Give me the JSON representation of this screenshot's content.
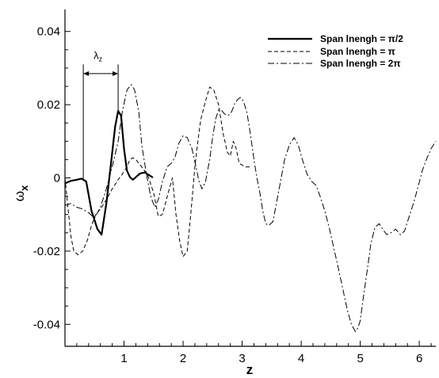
{
  "chart_data": {
    "type": "line",
    "xlabel": "z",
    "ylabel_main": "ω",
    "ylabel_sub": "x",
    "xlim": [
      0,
      6.28
    ],
    "ylim": [
      -0.046,
      0.046
    ],
    "xticks": [
      1,
      2,
      3,
      4,
      5,
      6
    ],
    "yticks": [
      0.04,
      0.02,
      0,
      -0.02,
      -0.04
    ],
    "ytick_labels": [
      "0.04",
      "0.02",
      "0",
      "-0.02",
      "-0.04"
    ],
    "grid": false,
    "legend_position": "top-right",
    "annotation": {
      "main": "λ",
      "sub": "z",
      "x_from": 0.31,
      "x_to": 0.9
    },
    "series": [
      {
        "name": "Span lnengh = π/2",
        "style": "solid",
        "color": "#000000",
        "x": [
          0,
          0.1,
          0.2,
          0.28,
          0.36,
          0.45,
          0.55,
          0.62,
          0.7,
          0.78,
          0.85,
          0.9,
          0.95,
          1.0,
          1.05,
          1.1,
          1.15,
          1.2,
          1.27,
          1.35,
          1.42,
          1.49
        ],
        "y": [
          -0.0015,
          -0.0008,
          -0.0005,
          -0.0002,
          -0.001,
          -0.009,
          -0.014,
          -0.0155,
          -0.007,
          0.004,
          0.014,
          0.0183,
          0.017,
          0.008,
          0.002,
          0.0002,
          -0.0005,
          0.0002,
          0.0012,
          0.0015,
          0.0008,
          0.0001
        ]
      },
      {
        "name": "Span lnengh = π",
        "style": "dashed",
        "color": "#000000",
        "x": [
          0,
          0.05,
          0.1,
          0.15,
          0.22,
          0.3,
          0.38,
          0.45,
          0.52,
          0.6,
          0.7,
          0.8,
          0.9,
          0.97,
          1.05,
          1.1,
          1.15,
          1.2,
          1.3,
          1.4,
          1.5,
          1.58,
          1.65,
          1.75,
          1.82,
          1.88,
          1.94,
          2.0,
          2.07,
          2.13,
          2.2,
          2.25,
          2.3,
          2.38,
          2.45,
          2.52,
          2.6,
          2.68,
          2.75,
          2.8,
          2.85,
          2.9,
          2.95,
          3.0,
          3.06,
          3.14
        ],
        "y": [
          0.0,
          -0.008,
          -0.016,
          -0.02,
          -0.021,
          -0.02,
          -0.017,
          -0.013,
          -0.01,
          -0.0085,
          -0.006,
          -0.003,
          -0.0005,
          0.001,
          0.003,
          0.005,
          0.0055,
          0.005,
          0.003,
          0.0008,
          -0.004,
          -0.0105,
          -0.01,
          -0.004,
          0.0,
          -0.01,
          -0.017,
          -0.0215,
          -0.02,
          -0.01,
          0.003,
          0.01,
          0.016,
          0.021,
          0.0248,
          0.024,
          0.02,
          0.012,
          0.007,
          0.006,
          0.01,
          0.008,
          0.004,
          0.0035,
          0.003,
          0.003
        ]
      },
      {
        "name": "Span lnengh = 2π",
        "style": "dashdot",
        "color": "#000000",
        "x": [
          0,
          0.1,
          0.2,
          0.3,
          0.4,
          0.5,
          0.6,
          0.7,
          0.8,
          0.9,
          0.97,
          1.05,
          1.12,
          1.18,
          1.25,
          1.3,
          1.38,
          1.45,
          1.52,
          1.58,
          1.65,
          1.73,
          1.8,
          1.86,
          1.93,
          2.0,
          2.07,
          2.15,
          2.22,
          2.27,
          2.32,
          2.38,
          2.45,
          2.5,
          2.55,
          2.6,
          2.65,
          2.7,
          2.76,
          2.82,
          2.88,
          2.93,
          2.97,
          3.02,
          3.08,
          3.14,
          3.2,
          3.25,
          3.3,
          3.35,
          3.4,
          3.45,
          3.52,
          3.58,
          3.65,
          3.72,
          3.8,
          3.88,
          3.95,
          4.02,
          4.1,
          4.18,
          4.25,
          4.32,
          4.4,
          4.48,
          4.55,
          4.62,
          4.7,
          4.78,
          4.85,
          4.92,
          4.96,
          5.0,
          5.05,
          5.12,
          5.18,
          5.25,
          5.32,
          5.38,
          5.45,
          5.52,
          5.6,
          5.68,
          5.75,
          5.82,
          5.9,
          5.97,
          6.05,
          6.12,
          6.2,
          6.28
        ],
        "y": [
          -0.0075,
          -0.007,
          -0.008,
          -0.0085,
          -0.0095,
          -0.011,
          -0.008,
          -0.003,
          0.003,
          0.01,
          0.018,
          0.024,
          0.0255,
          0.024,
          0.018,
          0.009,
          0.001,
          -0.005,
          -0.008,
          -0.006,
          -0.001,
          0.003,
          0.004,
          0.0055,
          0.0095,
          0.0115,
          0.011,
          0.008,
          0.003,
          -0.001,
          -0.003,
          -0.001,
          0.005,
          0.011,
          0.016,
          0.0185,
          0.0185,
          0.0175,
          0.017,
          0.018,
          0.0205,
          0.0215,
          0.022,
          0.021,
          0.018,
          0.012,
          0.005,
          0.0,
          -0.004,
          -0.009,
          -0.0125,
          -0.013,
          -0.012,
          -0.007,
          -0.001,
          0.005,
          0.009,
          0.011,
          0.009,
          0.005,
          0.001,
          -0.001,
          -0.002,
          -0.005,
          -0.009,
          -0.014,
          -0.019,
          -0.024,
          -0.03,
          -0.036,
          -0.04,
          -0.042,
          -0.041,
          -0.039,
          -0.033,
          -0.025,
          -0.018,
          -0.0135,
          -0.0125,
          -0.014,
          -0.0155,
          -0.015,
          -0.014,
          -0.0155,
          -0.0145,
          -0.011,
          -0.007,
          -0.003,
          0.002,
          0.005,
          0.008,
          0.01
        ]
      }
    ]
  }
}
